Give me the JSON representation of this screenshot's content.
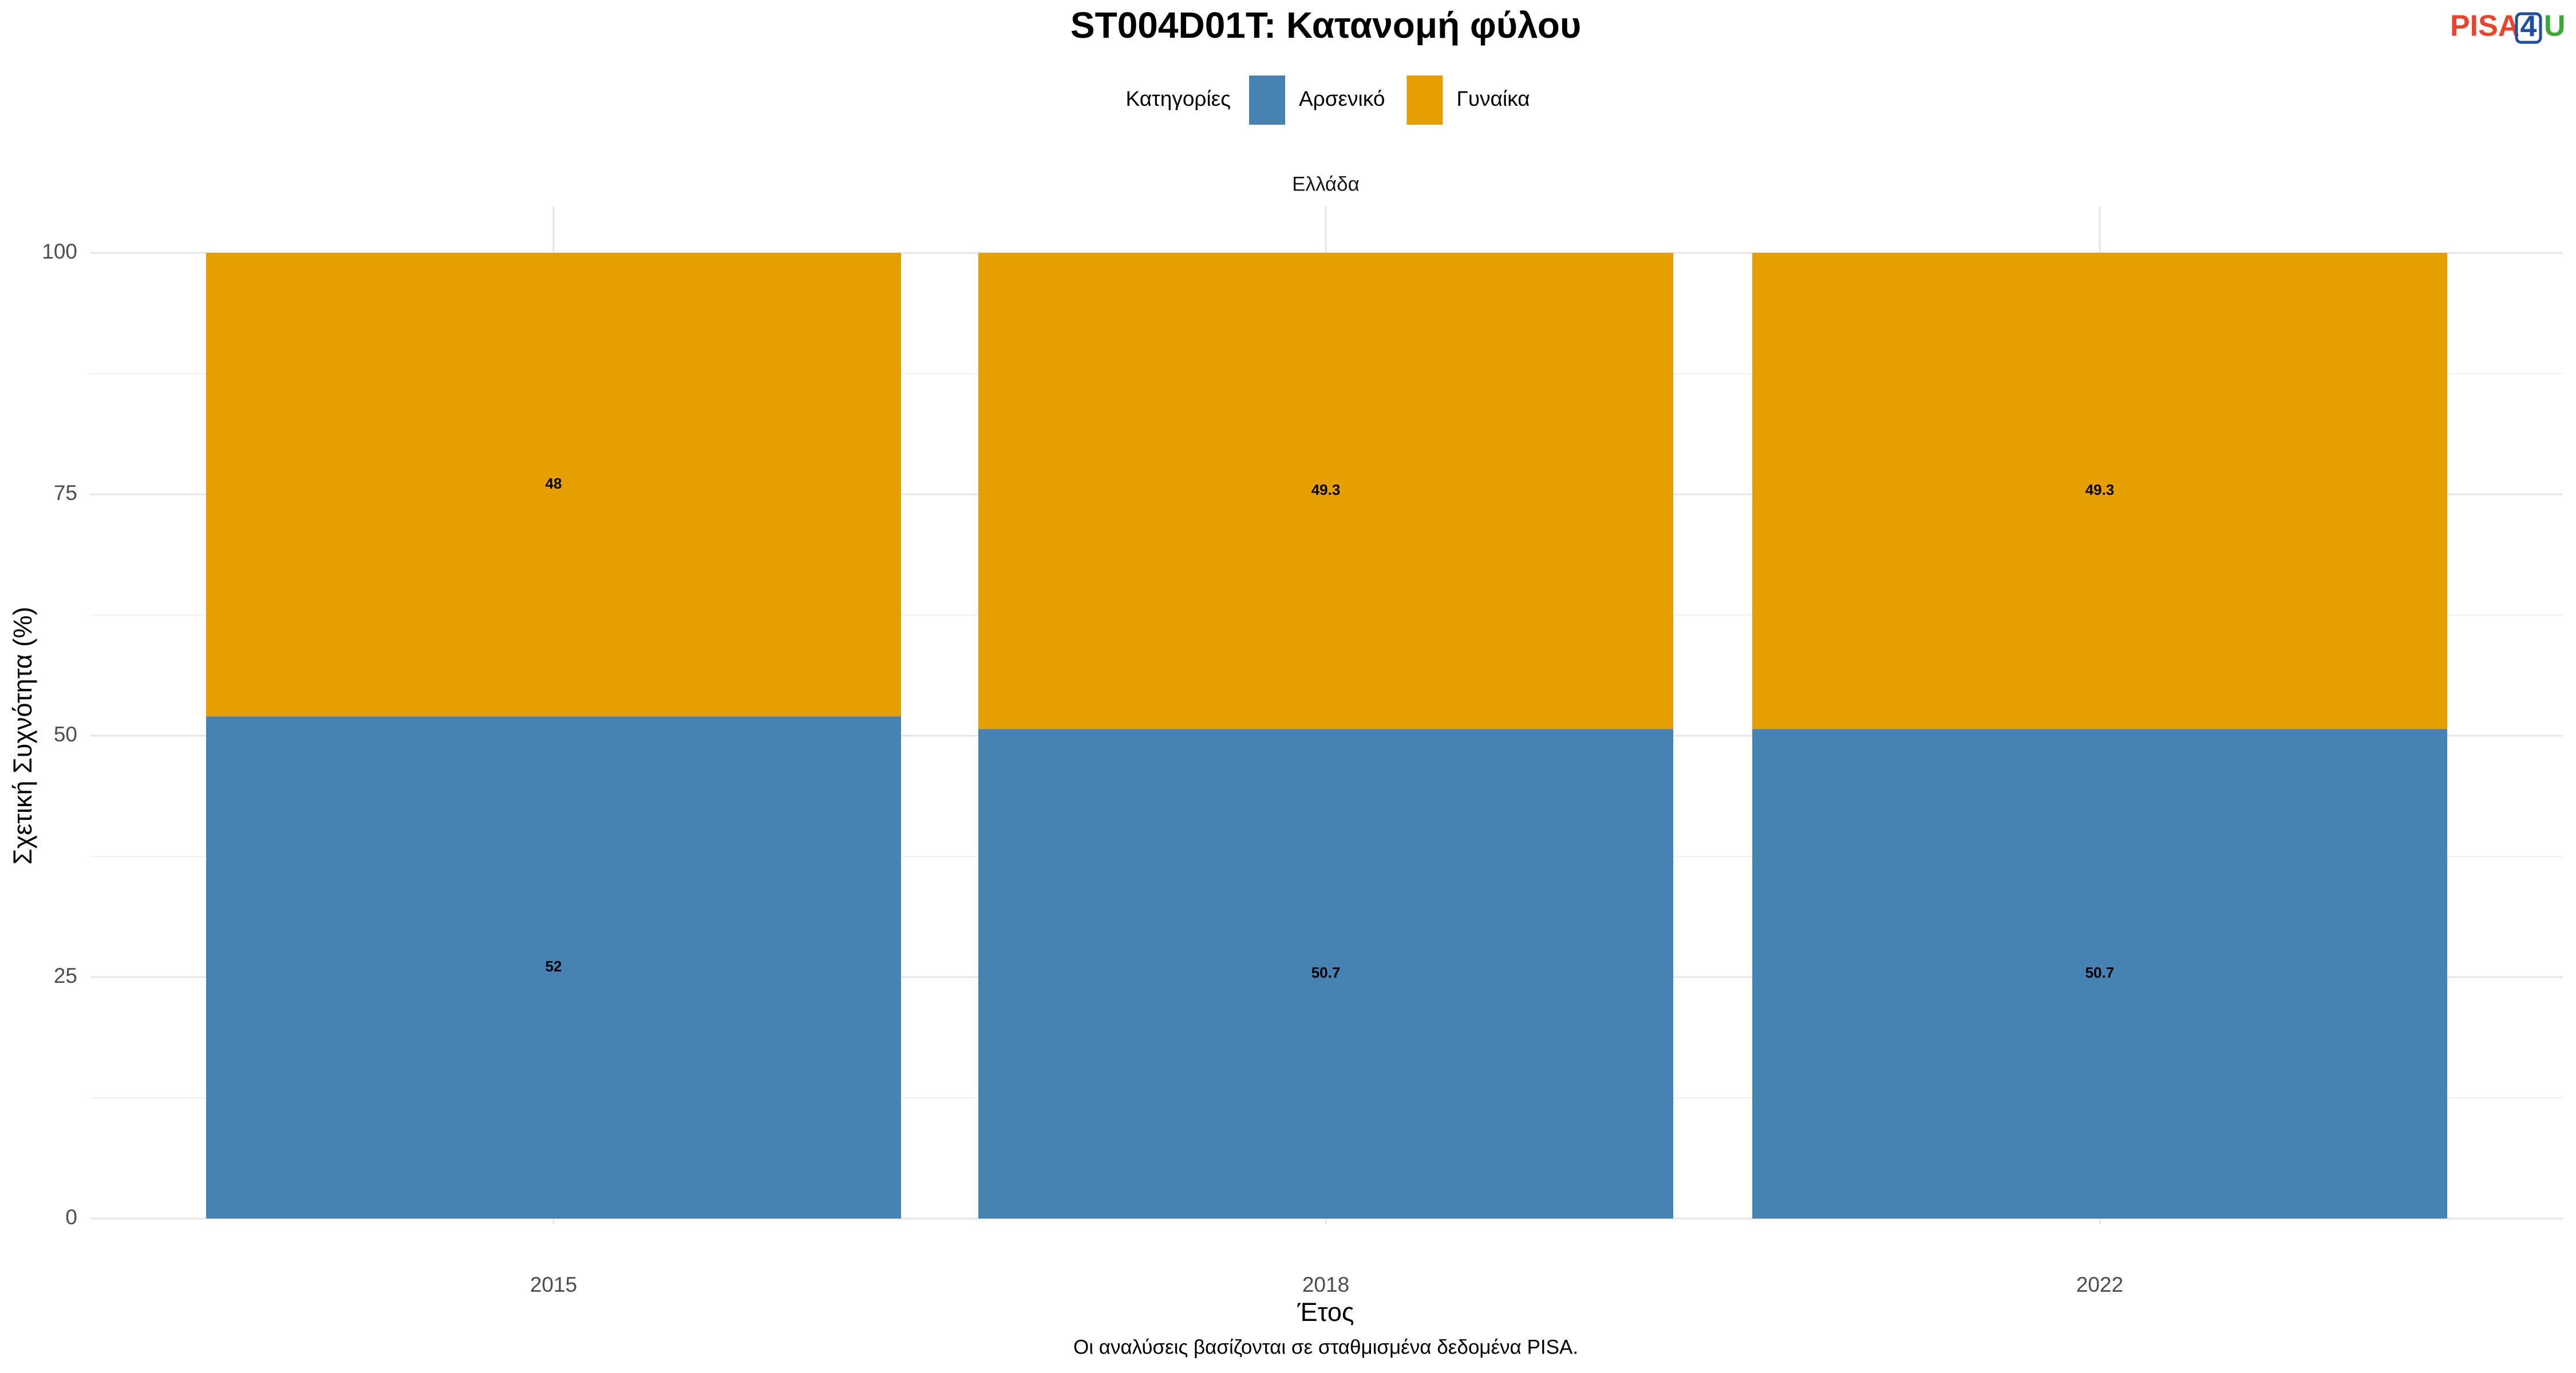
{
  "chart_data": {
    "type": "stacked_bar",
    "title": "ST004D01T: Κατανομή φύλου",
    "legend_title": "Κατηγορίες",
    "facet": "Ελλάδα",
    "xlabel": "Έτος",
    "ylabel": "Σχετική Συχνότητα (%)",
    "caption": "Οι αναλύσεις βασίζονται σε σταθμισμένα δεδομένα PISA.",
    "logo": [
      "PISA",
      "4",
      "U"
    ],
    "categories": [
      "2015",
      "2018",
      "2022"
    ],
    "series": [
      {
        "name": "Αρσενικό",
        "color": "#4682b4",
        "values": [
          52,
          50.7,
          50.7
        ]
      },
      {
        "name": "Γυναίκα",
        "color": "#e5a000",
        "values": [
          48,
          49.3,
          49.3
        ]
      }
    ],
    "ylim": [
      0,
      100
    ],
    "yticks": [
      0,
      25,
      50,
      75,
      100
    ],
    "grid": true,
    "legend": "top"
  }
}
